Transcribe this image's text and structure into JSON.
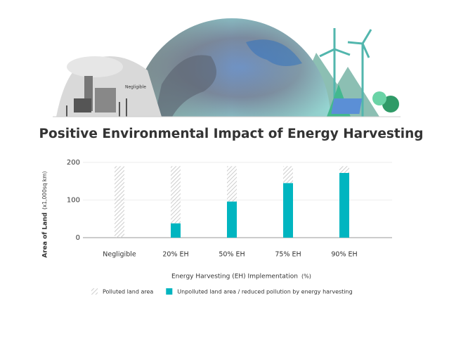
{
  "chart_data": {
    "type": "stacked-bar",
    "title": "Positive Environmental Impact of Energy Harvesting",
    "illustration_label": "Negligible",
    "y_label": "Area of Land",
    "y_label_unit": "(x1,000sq km)",
    "x_label": "Energy Harvesting (EH) Implementation",
    "x_label_unit": "(%)",
    "categories": [
      "Negligible",
      "20% EH",
      "50% EH",
      "75% EH",
      "90% EH"
    ],
    "series": [
      {
        "name": "Polluted land area",
        "color": "#c8c8c8",
        "hatched": true,
        "values": [
          190,
          152,
          94,
          45,
          18
        ]
      },
      {
        "name": "Unpolluted land area / reduced pollution by energy harvesting",
        "color": "#00b5c0",
        "hatched": false,
        "values": [
          0,
          38,
          96,
          145,
          172
        ]
      }
    ],
    "ylim": [
      0,
      200
    ],
    "yticks": [
      0,
      100,
      200
    ],
    "grid": true
  }
}
